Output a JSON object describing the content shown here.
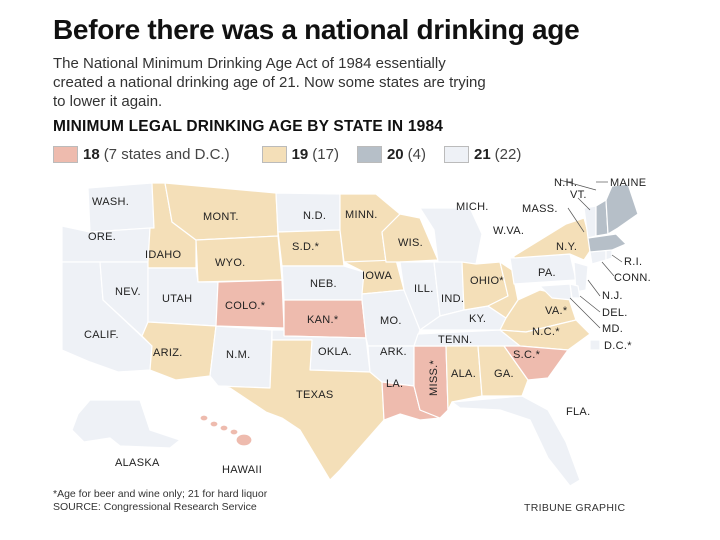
{
  "title": "Before there was a national drinking age",
  "description": [
    "The National Minimum Drinking Age Act of 1984 essentially",
    "created a national drinking age of 21. Now some states are trying",
    "to lower it again."
  ],
  "subtitle": "MINIMUM LEGAL DRINKING AGE BY STATE IN 1984",
  "colors": {
    "age_18": "#eebbae",
    "age_19": "#f4dfb8",
    "age_20": "#b6bfc8",
    "age_21": "#eef1f6"
  },
  "legend": [
    {
      "value": "18",
      "count": "(7 states and D.C.)"
    },
    {
      "value": "19",
      "count": "(17)"
    },
    {
      "value": "20",
      "count": "(4)"
    },
    {
      "value": "21",
      "count": "(22)"
    }
  ],
  "states": {
    "wa": "WASH.",
    "or": "ORE.",
    "ca": "CALIF.",
    "id": "IDAHO",
    "nv": "NEV.",
    "mt": "MONT.",
    "wy": "WYO.",
    "ut": "UTAH",
    "az": "ARIZ.",
    "nm": "N.M.",
    "co": "COLO.*",
    "nd": "N.D.",
    "sd": "S.D.*",
    "ne": "NEB.",
    "ks": "KAN.*",
    "ok": "OKLA.",
    "tx": "TEXAS",
    "mn": "MINN.",
    "ia": "IOWA",
    "mo": "MO.",
    "ar": "ARK.",
    "la": "LA.",
    "wi": "WIS.",
    "il": "ILL.",
    "ms": "MISS.*",
    "mi": "MICH.",
    "in": "IND.",
    "ky": "KY.",
    "tn": "TENN.",
    "al": "ALA.",
    "ga": "GA.",
    "fl": "FLA.",
    "oh": "OHIO*",
    "wv": "W.VA.",
    "va": "VA.*",
    "nc": "N.C.*",
    "sc": "S.C.*",
    "pa": "PA.",
    "ny": "N.Y.",
    "me": "MAINE",
    "nh": "N.H.",
    "vt": "VT.",
    "ma": "MASS.",
    "ri": "R.I.",
    "ct": "CONN.",
    "nj": "N.J.",
    "de": "DEL.",
    "md": "MD.",
    "dc": "D.C.*",
    "ak": "ALASKA",
    "hi": "HAWAII"
  },
  "footnote": [
    "*Age for beer and wine only; 21 for hard liquor",
    "SOURCE: Congressional Research Service"
  ],
  "credit": "TRIBUNE GRAPHIC"
}
